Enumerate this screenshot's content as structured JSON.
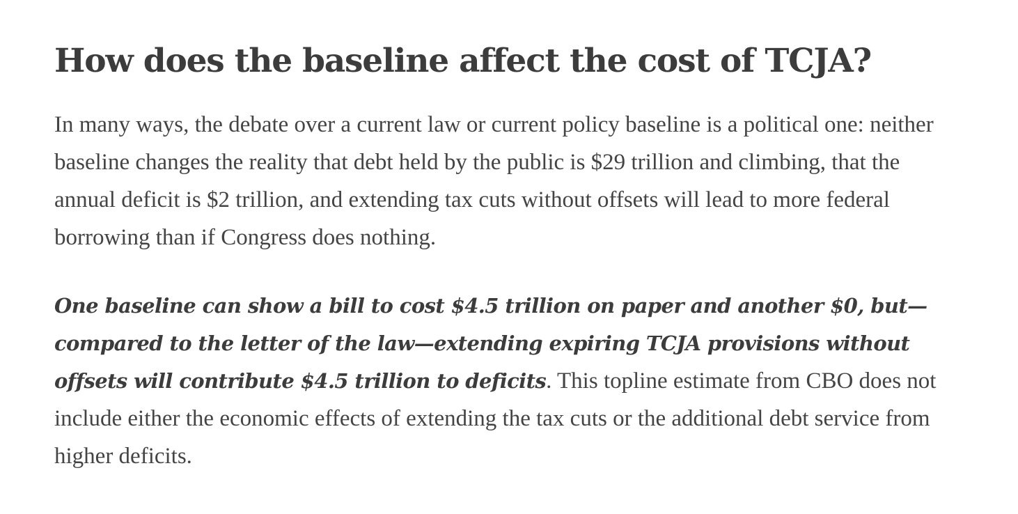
{
  "article": {
    "heading": "How does the baseline affect the cost of TCJA?",
    "paragraph1": "In many ways, the debate over a current law or current policy baseline is a political one: neither baseline changes the reality that debt held by the public is $29 trillion and climbing, that the annual deficit is $2 trillion, and extending tax cuts without offsets will lead to more federal borrowing than if Congress does nothing.",
    "paragraph2": {
      "emphasis": "One baseline can show a bill to cost $4.5 trillion on paper and another $0, but—compared to the letter of the law—extending expiring TCJA provisions without offsets will contribute $4.5 trillion to deficits",
      "rest": ". This topline estimate from CBO does not include either the economic effects of extending the tax cuts or the additional debt service from higher deficits."
    }
  }
}
